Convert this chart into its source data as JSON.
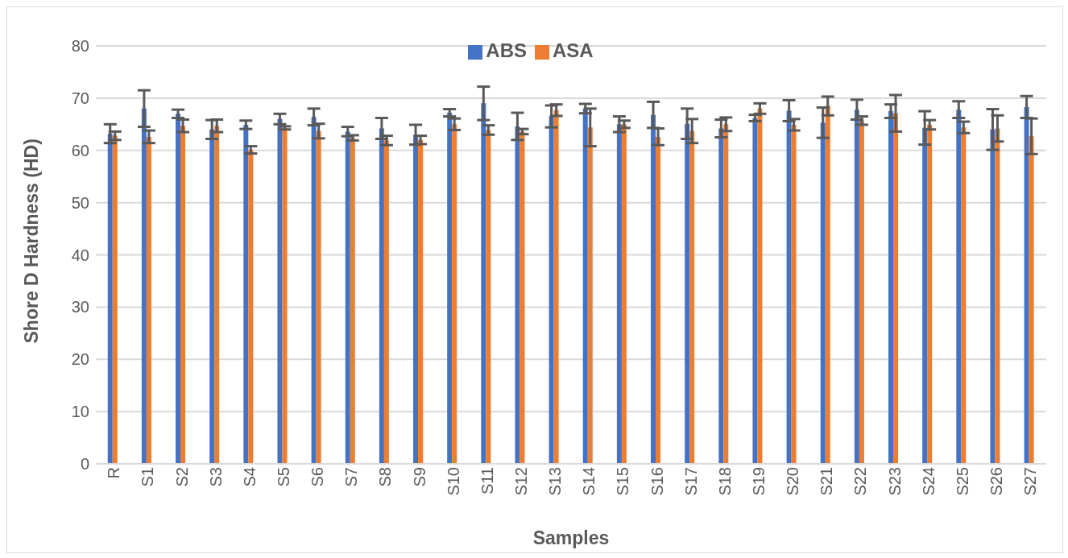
{
  "chart_data": {
    "type": "bar",
    "xlabel": "Samples",
    "ylabel": "Shore D Hardness (HD)",
    "categories": [
      "R",
      "S1",
      "S2",
      "S3",
      "S4",
      "S5",
      "S6",
      "S7",
      "S8",
      "S9",
      "S10",
      "S11",
      "S12",
      "S13",
      "S14",
      "S15",
      "S16",
      "S17",
      "S18",
      "S19",
      "S20",
      "S21",
      "S22",
      "S23",
      "S24",
      "S25",
      "S26",
      "S27"
    ],
    "series": [
      {
        "name": "ABS",
        "color": "#4472c4",
        "values": [
          63.2,
          68,
          67,
          64,
          64.9,
          66,
          66.4,
          63.6,
          64.2,
          63,
          67.2,
          69,
          64.6,
          66.5,
          68,
          65,
          66.8,
          65.1,
          64.2,
          66.2,
          67.6,
          65.3,
          67.8,
          67.5,
          64.3,
          67.8,
          64,
          68.3
        ],
        "errors": [
          1.8,
          3.5,
          0.8,
          1.8,
          0.8,
          1,
          1.6,
          0.9,
          2,
          1.9,
          0.7,
          3.2,
          2.6,
          2.1,
          0.9,
          1.5,
          2.5,
          2.9,
          1.7,
          0.6,
          2,
          2.9,
          1.9,
          1.3,
          3.2,
          1.6,
          3.9,
          2.1
        ]
      },
      {
        "name": "ASA",
        "color": "#ed7d31",
        "values": [
          62.8,
          62.6,
          64.7,
          64.7,
          60.1,
          64.3,
          63.7,
          62.4,
          61.9,
          62,
          65,
          63.9,
          63.6,
          67.7,
          64.4,
          65,
          62.6,
          63.7,
          65,
          68,
          64.9,
          68.5,
          65.7,
          67.1,
          64.9,
          64.4,
          64.2,
          62.7
        ],
        "errors": [
          0.8,
          1.2,
          1.2,
          1.2,
          0.7,
          0.3,
          1.4,
          0.5,
          0.9,
          0.8,
          1.1,
          0.9,
          0.5,
          1.1,
          3.6,
          0.7,
          1.6,
          2.3,
          1.3,
          1,
          1.1,
          1.8,
          0.8,
          3.5,
          0.9,
          1.1,
          2.5,
          3.4
        ]
      }
    ],
    "ylim": [
      0,
      80
    ],
    "yticks": [
      0,
      10,
      20,
      30,
      40,
      50,
      60,
      70,
      80
    ],
    "grid": "y",
    "legend": "top"
  }
}
